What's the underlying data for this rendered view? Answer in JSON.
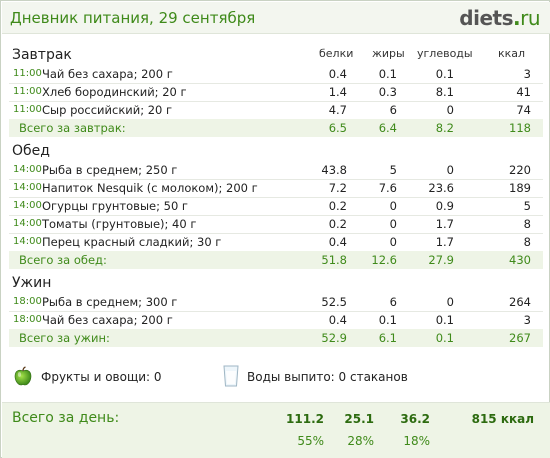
{
  "header": {
    "title": "Дневник питания, 29 сентября",
    "logo": {
      "name": "diets",
      "dot": ".",
      "tld": "ru"
    }
  },
  "columns": {
    "protein": "белки",
    "fat": "жиры",
    "carbs": "углеводы",
    "kcal": "ккал"
  },
  "meals": [
    {
      "name": "Завтрак",
      "items": [
        {
          "time": "11:00",
          "food": "Чай без сахара; 200 г",
          "protein": "0.4",
          "fat": "0.1",
          "carbs": "0.1",
          "kcal": "3"
        },
        {
          "time": "11:00",
          "food": "Хлеб бородинский; 20 г",
          "protein": "1.4",
          "fat": "0.3",
          "carbs": "8.1",
          "kcal": "41"
        },
        {
          "time": "11:00",
          "food": "Сыр российский; 20 г",
          "protein": "4.7",
          "fat": "6",
          "carbs": "0",
          "kcal": "74"
        }
      ],
      "total": {
        "label": "Всего за завтрак:",
        "protein": "6.5",
        "fat": "6.4",
        "carbs": "8.2",
        "kcal": "118"
      }
    },
    {
      "name": "Обед",
      "items": [
        {
          "time": "14:00",
          "food": "Рыба в среднем; 250 г",
          "protein": "43.8",
          "fat": "5",
          "carbs": "0",
          "kcal": "220"
        },
        {
          "time": "14:00",
          "food": "Напиток Nesquik (с молоком); 200 г",
          "protein": "7.2",
          "fat": "7.6",
          "carbs": "23.6",
          "kcal": "189"
        },
        {
          "time": "14:00",
          "food": "Огурцы грунтовые; 50 г",
          "protein": "0.2",
          "fat": "0",
          "carbs": "0.9",
          "kcal": "5"
        },
        {
          "time": "14:00",
          "food": "Томаты (грунтовые); 40 г",
          "protein": "0.2",
          "fat": "0",
          "carbs": "1.7",
          "kcal": "8"
        },
        {
          "time": "14:00",
          "food": "Перец красный сладкий; 30 г",
          "protein": "0.4",
          "fat": "0",
          "carbs": "1.7",
          "kcal": "8"
        }
      ],
      "total": {
        "label": "Всего за обед:",
        "protein": "51.8",
        "fat": "12.6",
        "carbs": "27.9",
        "kcal": "430"
      }
    },
    {
      "name": "Ужин",
      "items": [
        {
          "time": "18:00",
          "food": "Рыба в среднем; 300 г",
          "protein": "52.5",
          "fat": "6",
          "carbs": "0",
          "kcal": "264"
        },
        {
          "time": "18:00",
          "food": "Чай без сахара; 200 г",
          "protein": "0.4",
          "fat": "0.1",
          "carbs": "0.1",
          "kcal": "3"
        }
      ],
      "total": {
        "label": "Всего за ужин:",
        "protein": "52.9",
        "fat": "6.1",
        "carbs": "0.1",
        "kcal": "267"
      }
    }
  ],
  "extras": {
    "fruit_icon": "apple-icon",
    "fruit_text": "Фрукты и овощи: 0",
    "water_icon": "glass-icon",
    "water_text": "Воды выпито: 0 стаканов"
  },
  "day_total": {
    "label": "Всего за день:",
    "protein": "111.2",
    "fat": "25.1",
    "carbs": "36.2",
    "kcal": "815 ккал",
    "protein_pct": "55%",
    "fat_pct": "28%",
    "carbs_pct": "18%"
  },
  "colors": {
    "accent": "#3f8a1a",
    "total_bg": "#eef4e6",
    "header_bg": "#f3f6ef"
  }
}
